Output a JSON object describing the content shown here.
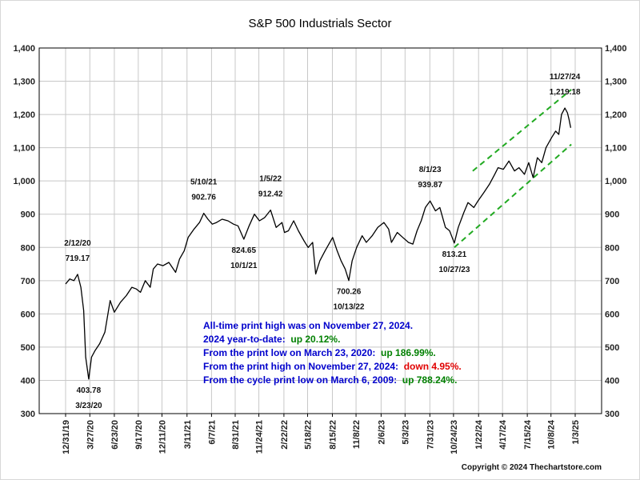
{
  "chart_data": {
    "type": "line",
    "title": "S&P 500 Industrials Sector",
    "xlabel": "",
    "ylabel": "",
    "ylim": [
      300,
      1400
    ],
    "y_ticks": [
      "300",
      "400",
      "500",
      "600",
      "700",
      "800",
      "900",
      "1,000",
      "1,100",
      "1,200",
      "1,300",
      "1,400"
    ],
    "x_ticks": [
      "12/31/19",
      "3/27/20",
      "6/23/20",
      "9/17/20",
      "12/11/20",
      "3/11/21",
      "6/7/21",
      "8/31/21",
      "11/24/21",
      "2/22/22",
      "5/18/22",
      "8/15/22",
      "11/8/22",
      "2/6/23",
      "5/3/23",
      "7/31/23",
      "10/24/23",
      "1/22/24",
      "4/17/24",
      "7/15/24",
      "10/8/24",
      "1/3/25"
    ],
    "grid": true,
    "series": [
      {
        "values": [
          [
            "2019-12-31",
            690
          ],
          [
            "2020-01-15",
            705
          ],
          [
            "2020-01-30",
            700
          ],
          [
            "2020-02-12",
            719.17
          ],
          [
            "2020-02-24",
            680
          ],
          [
            "2020-03-05",
            610
          ],
          [
            "2020-03-12",
            470
          ],
          [
            "2020-03-23",
            403.78
          ],
          [
            "2020-04-02",
            470
          ],
          [
            "2020-04-15",
            490
          ],
          [
            "2020-05-01",
            510
          ],
          [
            "2020-05-20",
            545
          ],
          [
            "2020-06-08",
            640
          ],
          [
            "2020-06-23",
            605
          ],
          [
            "2020-07-15",
            635
          ],
          [
            "2020-08-05",
            655
          ],
          [
            "2020-08-25",
            680
          ],
          [
            "2020-09-10",
            675
          ],
          [
            "2020-09-25",
            665
          ],
          [
            "2020-10-12",
            700
          ],
          [
            "2020-10-30",
            680
          ],
          [
            "2020-11-10",
            735
          ],
          [
            "2020-11-25",
            750
          ],
          [
            "2020-12-15",
            745
          ],
          [
            "2021-01-05",
            755
          ],
          [
            "2021-01-29",
            725
          ],
          [
            "2021-02-12",
            765
          ],
          [
            "2021-03-01",
            790
          ],
          [
            "2021-03-15",
            830
          ],
          [
            "2021-04-05",
            855
          ],
          [
            "2021-04-25",
            875
          ],
          [
            "2021-05-10",
            902.76
          ],
          [
            "2021-05-25",
            885
          ],
          [
            "2021-06-10",
            870
          ],
          [
            "2021-06-25",
            875
          ],
          [
            "2021-07-15",
            885
          ],
          [
            "2021-08-05",
            880
          ],
          [
            "2021-08-25",
            870
          ],
          [
            "2021-09-10",
            865
          ],
          [
            "2021-10-01",
            824.65
          ],
          [
            "2021-10-20",
            865
          ],
          [
            "2021-11-08",
            900
          ],
          [
            "2021-11-26",
            880
          ],
          [
            "2021-12-15",
            890
          ],
          [
            "2022-01-05",
            912.42
          ],
          [
            "2022-01-25",
            860
          ],
          [
            "2022-02-15",
            875
          ],
          [
            "2022-02-24",
            845
          ],
          [
            "2022-03-10",
            850
          ],
          [
            "2022-03-29",
            880
          ],
          [
            "2022-04-15",
            850
          ],
          [
            "2022-05-05",
            820
          ],
          [
            "2022-05-20",
            800
          ],
          [
            "2022-06-05",
            815
          ],
          [
            "2022-06-16",
            720
          ],
          [
            "2022-07-01",
            760
          ],
          [
            "2022-07-20",
            790
          ],
          [
            "2022-08-16",
            830
          ],
          [
            "2022-09-01",
            790
          ],
          [
            "2022-09-15",
            760
          ],
          [
            "2022-09-30",
            735
          ],
          [
            "2022-10-13",
            700.26
          ],
          [
            "2022-10-25",
            760
          ],
          [
            "2022-11-10",
            800
          ],
          [
            "2022-11-30",
            835
          ],
          [
            "2022-12-15",
            815
          ],
          [
            "2023-01-05",
            835
          ],
          [
            "2023-01-25",
            860
          ],
          [
            "2023-02-16",
            875
          ],
          [
            "2023-03-05",
            855
          ],
          [
            "2023-03-15",
            815
          ],
          [
            "2023-04-05",
            845
          ],
          [
            "2023-04-25",
            830
          ],
          [
            "2023-05-15",
            815
          ],
          [
            "2023-05-31",
            810
          ],
          [
            "2023-06-15",
            850
          ],
          [
            "2023-06-30",
            880
          ],
          [
            "2023-07-15",
            920
          ],
          [
            "2023-08-01",
            939.87
          ],
          [
            "2023-08-20",
            910
          ],
          [
            "2023-09-05",
            920
          ],
          [
            "2023-09-25",
            860
          ],
          [
            "2023-10-10",
            850
          ],
          [
            "2023-10-27",
            813.21
          ],
          [
            "2023-11-10",
            860
          ],
          [
            "2023-11-30",
            905
          ],
          [
            "2023-12-15",
            935
          ],
          [
            "2024-01-05",
            920
          ],
          [
            "2024-01-20",
            940
          ],
          [
            "2024-02-10",
            965
          ],
          [
            "2024-03-01",
            990
          ],
          [
            "2024-03-20",
            1020
          ],
          [
            "2024-04-01",
            1040
          ],
          [
            "2024-04-20",
            1035
          ],
          [
            "2024-05-10",
            1060
          ],
          [
            "2024-05-30",
            1030
          ],
          [
            "2024-06-15",
            1040
          ],
          [
            "2024-07-05",
            1020
          ],
          [
            "2024-07-20",
            1055
          ],
          [
            "2024-08-05",
            1010
          ],
          [
            "2024-08-20",
            1070
          ],
          [
            "2024-09-05",
            1055
          ],
          [
            "2024-09-20",
            1100
          ],
          [
            "2024-10-10",
            1130
          ],
          [
            "2024-10-25",
            1150
          ],
          [
            "2024-11-05",
            1140
          ],
          [
            "2024-11-15",
            1200
          ],
          [
            "2024-11-27",
            1219.18
          ],
          [
            "2024-12-06",
            1205
          ],
          [
            "2024-12-12",
            1185
          ],
          [
            "2024-12-18",
            1160
          ]
        ]
      }
    ],
    "channel_lines": [
      {
        "from": [
          "2023-10-27",
          800
        ],
        "to": [
          "2024-12-20",
          1110
        ]
      },
      {
        "from": [
          "2024-01-01",
          1030
        ],
        "to": [
          "2024-12-20",
          1275
        ]
      }
    ],
    "peak_labels": [
      {
        "date": "2020-02-12",
        "value": 719.17,
        "top": "2/12/20",
        "bottom": "719.17",
        "pos": "above"
      },
      {
        "date": "2020-03-23",
        "value": 403.78,
        "top": "403.78",
        "bottom": "3/23/20",
        "pos": "below"
      },
      {
        "date": "2021-05-10",
        "value": 902.76,
        "top": "5/10/21",
        "bottom": "902.76",
        "pos": "above"
      },
      {
        "date": "2021-10-01",
        "value": 824.65,
        "top": "824.65",
        "bottom": "10/1/21",
        "pos": "below"
      },
      {
        "date": "2022-01-05",
        "value": 912.42,
        "top": "1/5/22",
        "bottom": "912.42",
        "pos": "above"
      },
      {
        "date": "2022-10-13",
        "value": 700.26,
        "top": "700.26",
        "bottom": "10/13/22",
        "pos": "below"
      },
      {
        "date": "2023-08-01",
        "value": 939.87,
        "top": "8/1/23",
        "bottom": "939.87",
        "pos": "above"
      },
      {
        "date": "2023-10-27",
        "value": 813.21,
        "top": "813.21",
        "bottom": "10/27/23",
        "pos": "below"
      },
      {
        "date": "2024-11-27",
        "value": 1219.18,
        "top": "11/27/24",
        "bottom": "1,219.18",
        "pos": "above"
      }
    ],
    "stats": [
      {
        "parts": [
          {
            "text": "All-time print high was on November 27, 2024.",
            "color": "#0000cc"
          }
        ]
      },
      {
        "parts": [
          {
            "text": "2024 year-to-date:  ",
            "color": "#0000cc"
          },
          {
            "text": "up 20.12%.",
            "color": "#008000"
          }
        ]
      },
      {
        "parts": [
          {
            "text": "From the print low on March 23, 2020:  ",
            "color": "#0000cc"
          },
          {
            "text": "up 186.99%.",
            "color": "#008000"
          }
        ]
      },
      {
        "parts": [
          {
            "text": "From the print high on November 27, 2024:  ",
            "color": "#0000cc"
          },
          {
            "text": "down 4.95%.",
            "color": "#e00000"
          }
        ]
      },
      {
        "parts": [
          {
            "text": "From the cycle print low on March 6, 2009:  ",
            "color": "#0000cc"
          },
          {
            "text": "up 788.24%.",
            "color": "#008000"
          }
        ]
      }
    ],
    "copyright": "Copyright © 2024 Thechartstore.com",
    "colors": {
      "line": "#000000",
      "channel": "#22aa22",
      "grid": "#c8c8c8"
    }
  }
}
